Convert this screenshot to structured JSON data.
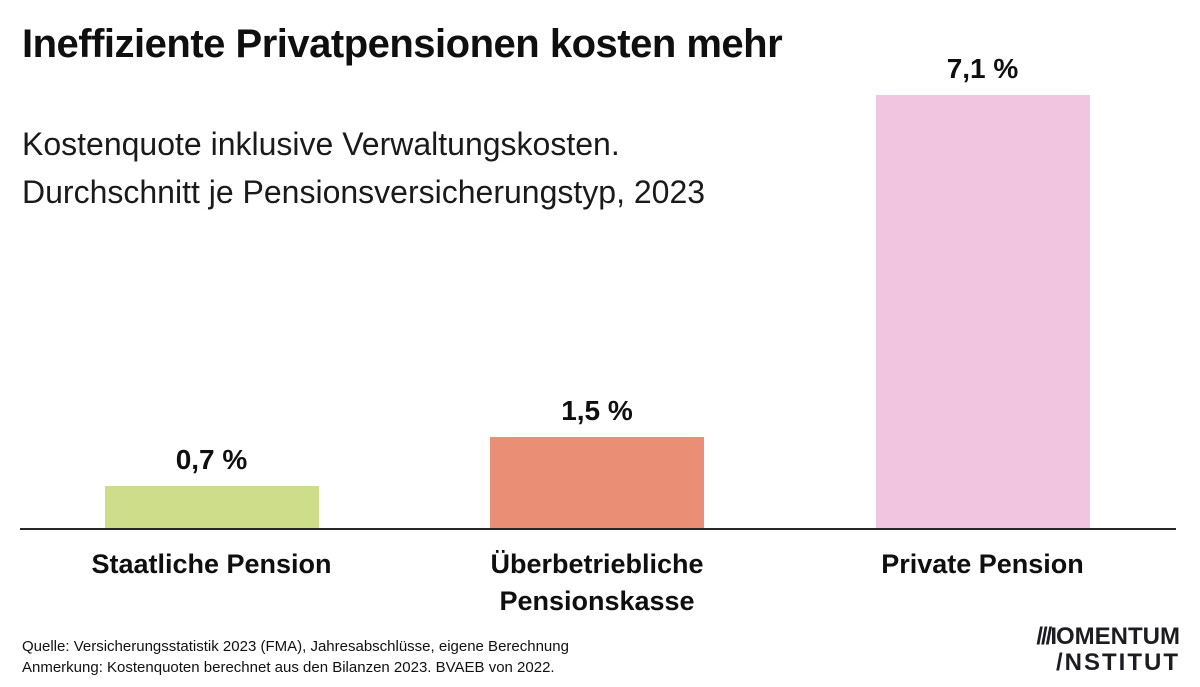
{
  "page": {
    "background": "#ffffff"
  },
  "header": {
    "title": "Ineffiziente Privatpensionen kosten mehr",
    "subtitle_line1": "Kostenquote inklusive Verwaltungskosten.",
    "subtitle_line2": "Durchschnitt je Pensionsversicherungstyp, 2023"
  },
  "chart_data": {
    "type": "bar",
    "title": "Ineffiziente Privatpensionen kosten mehr",
    "subtitle": "Kostenquote inklusive Verwaltungskosten. Durchschnitt je Pensionsversicherungstyp, 2023",
    "categories": [
      "Staatliche Pension",
      "Überbetriebliche Pensionskasse",
      "Private Pension"
    ],
    "values": [
      0.7,
      1.5,
      7.1
    ],
    "value_labels": [
      "0,7 %",
      "1,5 %",
      "7,1 %"
    ],
    "colors": [
      "#cedd8a",
      "#ea8f76",
      "#f1c4e0"
    ],
    "unit": "%",
    "xlabel": "",
    "ylabel": "",
    "ylim": [
      0,
      7.5
    ],
    "grid": false,
    "legend_position": "none",
    "baseline_color": "#26262b"
  },
  "footer": {
    "source": "Quelle: Versicherungsstatistik 2023 (FMA), Jahresabschlüsse, eigene Berechnung",
    "note": "Anmerkung: Kostenquoten berechnet aus den Bilanzen 2023. BVAEB von 2022."
  },
  "logo": {
    "m_mark": "///I",
    "line1_rest": "OMENTUM",
    "line2": "/NSTITUT"
  }
}
